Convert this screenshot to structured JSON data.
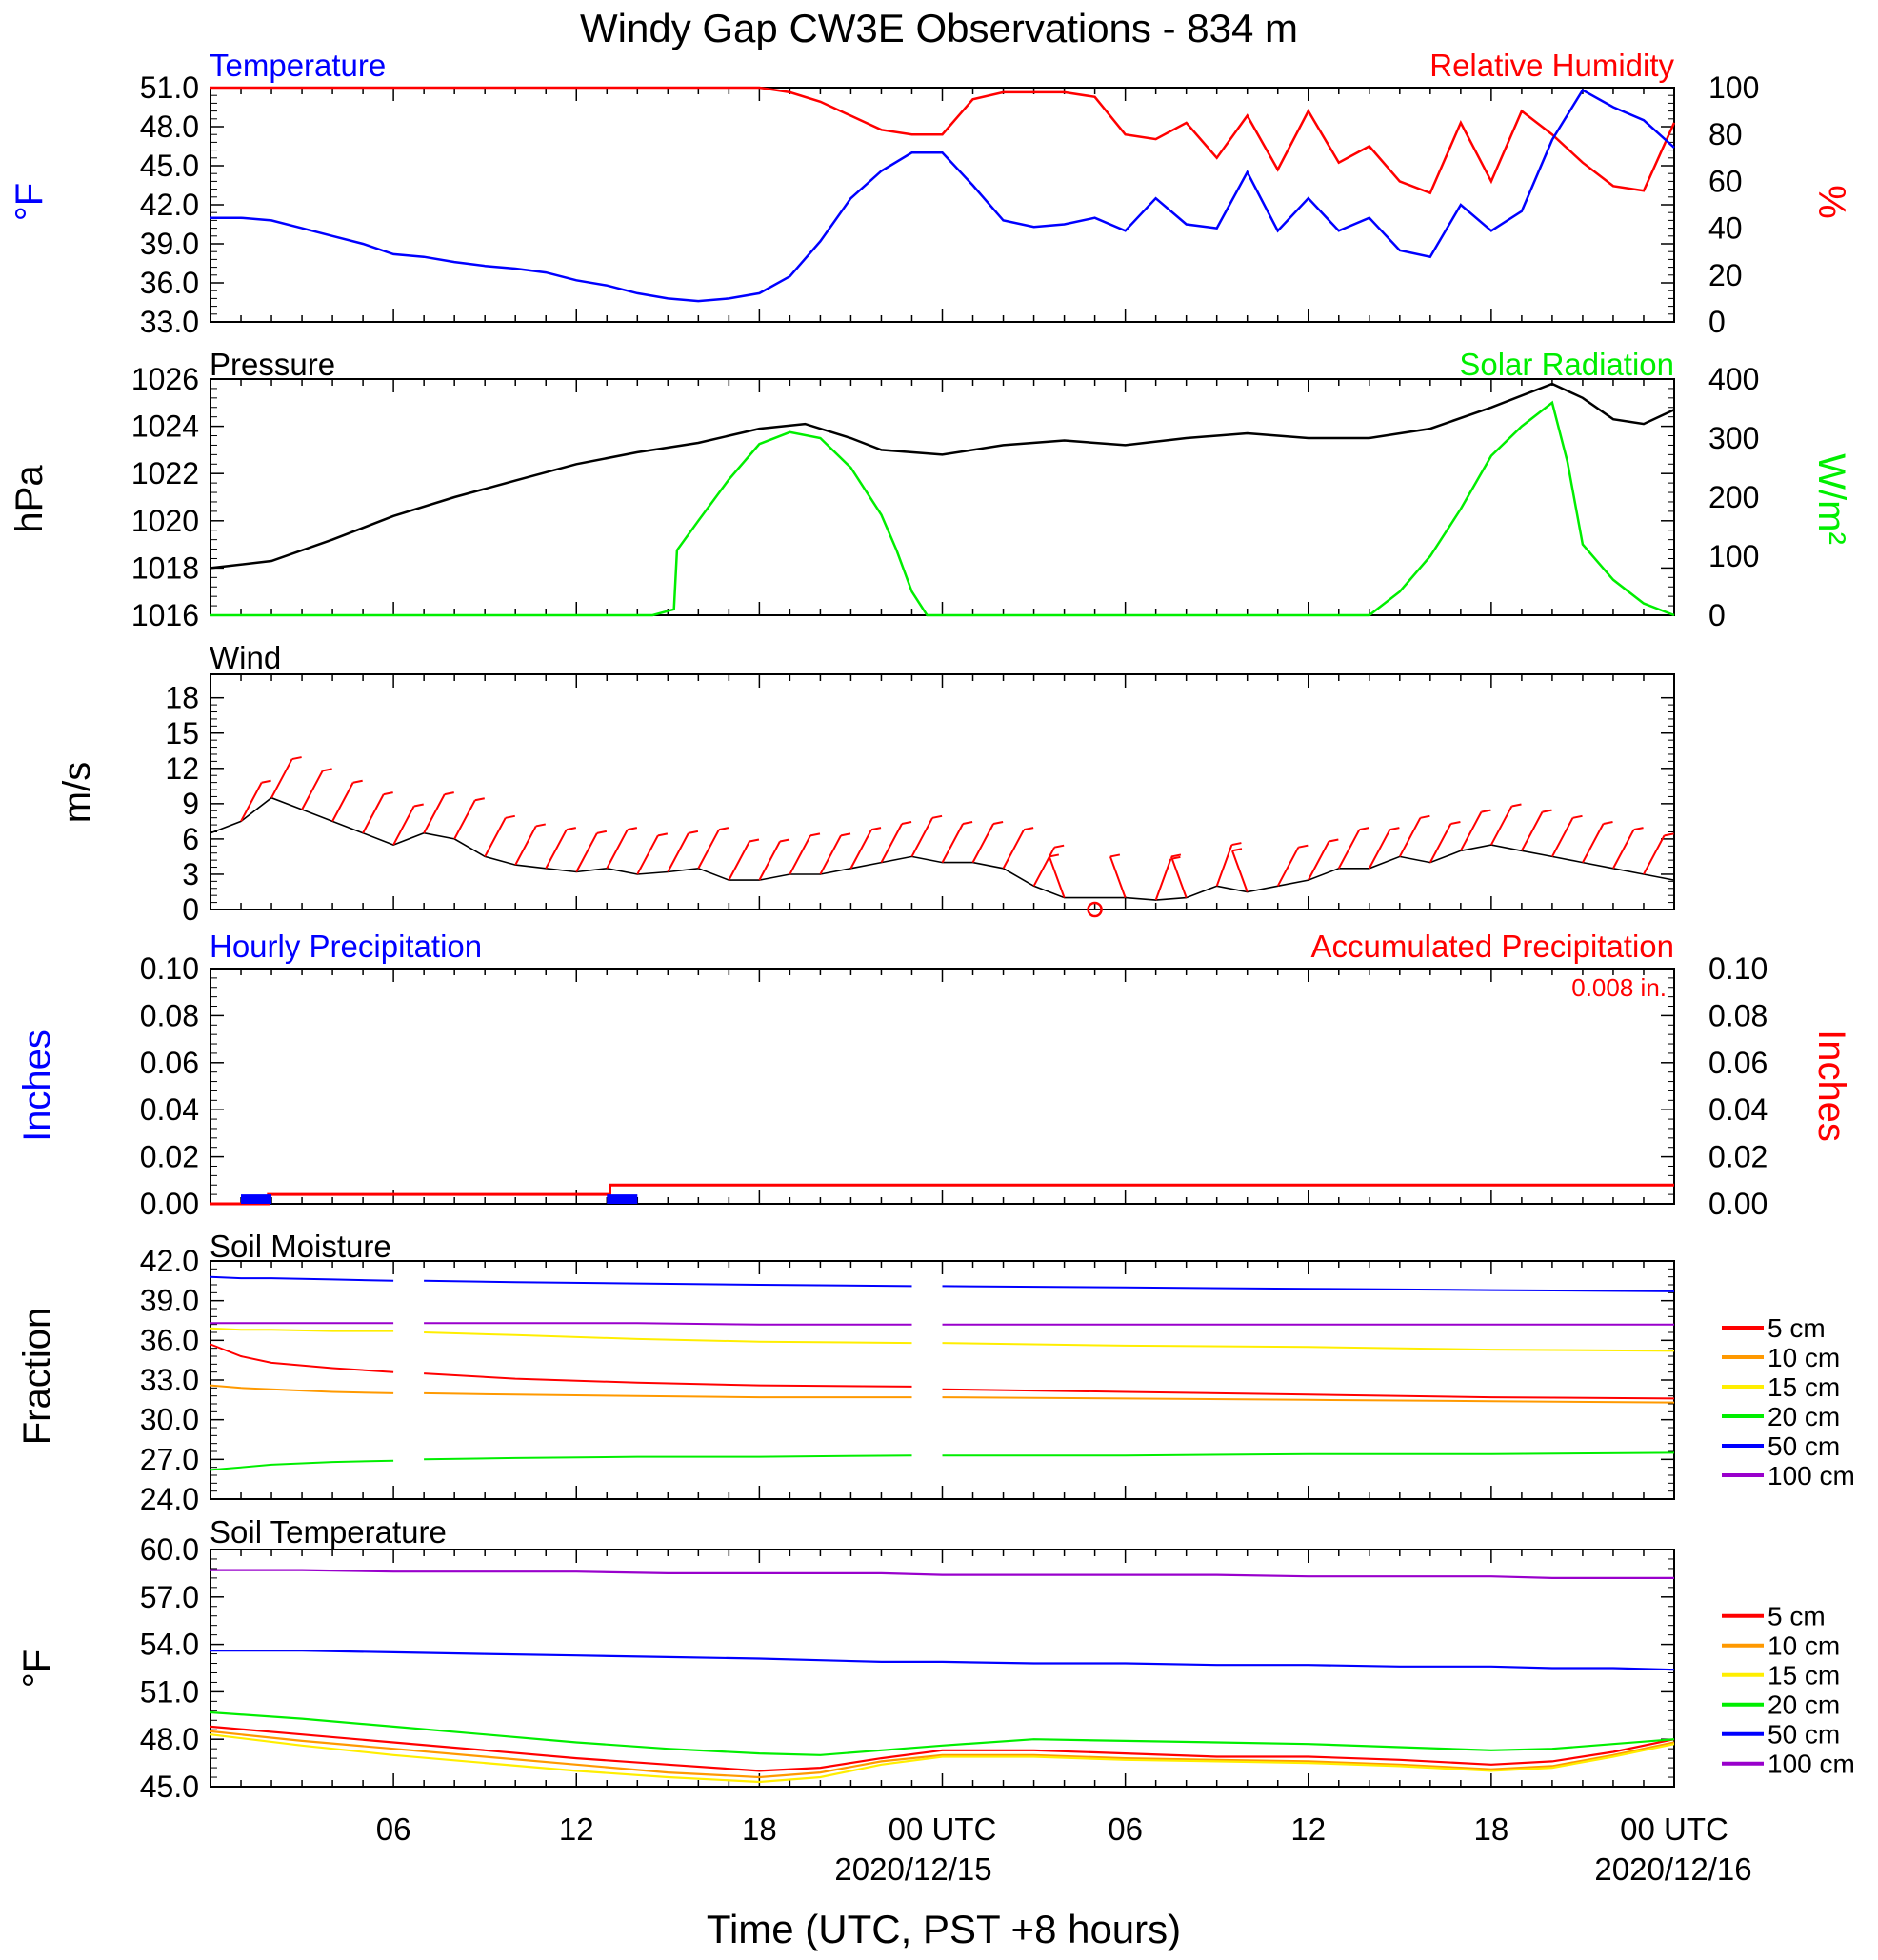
{
  "title": "Windy Gap CW3E Observations - 834 m",
  "time_axis": {
    "xlabel": "Time (UTC, PST +8 hours)",
    "ticks": [
      "06",
      "12",
      "18",
      "00 UTC",
      "06",
      "12",
      "18",
      "00 UTC"
    ],
    "dates": [
      "2020/12/15",
      "2020/12/16"
    ]
  },
  "colors": {
    "temperature": "#0000ff",
    "humidity": "#ff0000",
    "pressure": "#000000",
    "solar": "#00ee00",
    "wind_speed": "#000000",
    "wind_barb": "#ff0000",
    "hourly_precip": "#0000ff",
    "accum_precip": "#ff0000",
    "depth_colors": [
      "#ff0000",
      "#ff9900",
      "#ffee00",
      "#00ee00",
      "#0000ff",
      "#9900cc"
    ]
  },
  "legend_depths": [
    "5 cm",
    "10 cm",
    "15 cm",
    "20 cm",
    "50 cm",
    "100 cm"
  ],
  "chart_data": [
    {
      "type": "line",
      "name": "temp-rh",
      "left_title": "Temperature",
      "right_title": "Relative Humidity",
      "ylabel_left": "°F",
      "ylabel_right": "%",
      "ylim_left": [
        33,
        51
      ],
      "yticks_left": [
        "33.0",
        "36.0",
        "39.0",
        "42.0",
        "45.0",
        "48.0",
        "51.0"
      ],
      "ylim_right": [
        0,
        100
      ],
      "yticks_right": [
        "0",
        "20",
        "40",
        "60",
        "80",
        "100"
      ],
      "x_hours": [
        0,
        1,
        2,
        3,
        4,
        5,
        6,
        7,
        8,
        9,
        10,
        11,
        12,
        13,
        14,
        15,
        16,
        17,
        18,
        19,
        20,
        21,
        22,
        23,
        24,
        25,
        26,
        27,
        28,
        29,
        30,
        31,
        32,
        33,
        34,
        35,
        36,
        37,
        38,
        39,
        40,
        41,
        42,
        43,
        44,
        45,
        46,
        47,
        48
      ],
      "series": [
        {
          "name": "Temperature",
          "axis": "left",
          "values": [
            41.0,
            41.0,
            40.8,
            40.2,
            39.6,
            39.0,
            38.2,
            38.0,
            37.6,
            37.3,
            37.1,
            36.8,
            36.2,
            35.8,
            35.2,
            34.8,
            34.6,
            34.8,
            35.2,
            36.5,
            39.2,
            42.5,
            44.6,
            46.0,
            46.0,
            43.5,
            40.8,
            40.3,
            40.5,
            41.0,
            40.0,
            42.5,
            40.5,
            40.2,
            44.5,
            40.0,
            42.5,
            40.0,
            41.0,
            38.5,
            38.0,
            42.0,
            40.0,
            41.5,
            47.0,
            50.8,
            49.5,
            48.5,
            46.4
          ]
        },
        {
          "name": "Relative Humidity",
          "axis": "right",
          "values": [
            100,
            100,
            100,
            100,
            100,
            100,
            100,
            100,
            100,
            100,
            100,
            100,
            100,
            100,
            100,
            100,
            100,
            100,
            100,
            98,
            94,
            88,
            82,
            80,
            80,
            95,
            98,
            98,
            98,
            96,
            80,
            78,
            85,
            70,
            88,
            65,
            90,
            68,
            75,
            60,
            55,
            85,
            60,
            90,
            80,
            68,
            58,
            56,
            85
          ]
        }
      ]
    },
    {
      "type": "line",
      "name": "pressure-solar",
      "left_title": "Pressure",
      "right_title": "Solar Radiation",
      "ylabel_left": "hPa",
      "ylabel_right": "W/m²",
      "ylim_left": [
        1016,
        1026
      ],
      "yticks_left": [
        "1016",
        "1018",
        "1020",
        "1022",
        "1024",
        "1026"
      ],
      "ylim_right": [
        0,
        400
      ],
      "yticks_right": [
        "0",
        "100",
        "200",
        "300",
        "400"
      ],
      "x_hours": [
        0,
        2,
        4,
        6,
        8,
        10,
        12,
        14,
        16,
        18,
        19.5,
        21,
        22,
        24,
        26,
        28,
        30,
        32,
        34,
        36,
        38,
        40,
        42,
        44,
        45,
        46,
        47,
        48
      ],
      "series": [
        {
          "name": "Pressure",
          "axis": "left",
          "values": [
            1018.0,
            1018.3,
            1019.2,
            1020.2,
            1021.0,
            1021.7,
            1022.4,
            1022.9,
            1023.3,
            1023.9,
            1024.1,
            1023.5,
            1023.0,
            1022.8,
            1023.2,
            1023.4,
            1023.2,
            1023.5,
            1023.7,
            1023.5,
            1023.5,
            1023.9,
            1024.8,
            1025.8,
            1025.2,
            1024.3,
            1024.1,
            1024.7
          ]
        },
        {
          "name": "Solar Radiation",
          "axis": "right",
          "values": [
            0,
            0,
            0,
            0,
            0,
            0,
            0,
            0,
            0,
            0,
            0,
            0,
            0,
            0,
            0,
            0,
            0,
            0,
            0,
            0,
            0,
            0,
            0,
            0,
            0,
            0,
            0,
            0
          ]
        }
      ],
      "solar_curve": {
        "x_hours": [
          0,
          14.5,
          15.2,
          15.3,
          16,
          17,
          18,
          19,
          20,
          21,
          22,
          22.5,
          23,
          23.5,
          24,
          24.5,
          36,
          38,
          39,
          40,
          41,
          42,
          43,
          44,
          44.5,
          45,
          45.5,
          46,
          47,
          48
        ],
        "values": [
          0,
          0,
          10,
          110,
          160,
          230,
          290,
          310,
          300,
          250,
          170,
          110,
          40,
          0,
          0,
          0,
          0,
          0,
          40,
          100,
          180,
          270,
          320,
          360,
          260,
          120,
          90,
          60,
          20,
          0
        ]
      }
    },
    {
      "type": "line",
      "name": "wind",
      "left_title": "Wind",
      "ylabel_left": "m/s",
      "ylim_left": [
        0,
        20
      ],
      "yticks_left": [
        "0",
        "3",
        "6",
        "9",
        "12",
        "15",
        "18"
      ],
      "x_hours": [
        0,
        1,
        2,
        3,
        4,
        5,
        6,
        7,
        8,
        9,
        10,
        11,
        12,
        13,
        14,
        15,
        16,
        17,
        18,
        19,
        20,
        21,
        22,
        23,
        24,
        25,
        26,
        27,
        28,
        29,
        30,
        31,
        32,
        33,
        34,
        35,
        36,
        37,
        38,
        39,
        40,
        41,
        42,
        43,
        44,
        45,
        46,
        47,
        48
      ],
      "series": [
        {
          "name": "Speed",
          "values": [
            6.5,
            7.5,
            9.5,
            8.5,
            7.5,
            6.5,
            5.5,
            6.5,
            6.0,
            4.5,
            3.8,
            3.5,
            3.2,
            3.5,
            3.0,
            3.2,
            3.5,
            2.5,
            2.5,
            3.0,
            3.0,
            3.5,
            4.0,
            4.5,
            4.0,
            4.0,
            3.5,
            2.0,
            1.0,
            1.0,
            1.0,
            0.8,
            1.0,
            2.0,
            1.5,
            2.0,
            2.5,
            3.5,
            3.5,
            4.5,
            4.0,
            5.0,
            5.5,
            5.0,
            4.5,
            4.0,
            3.5,
            3.0,
            2.5
          ]
        }
      ]
    },
    {
      "type": "bar",
      "name": "precipitation",
      "left_title": "Hourly Precipitation",
      "right_title": "Accumulated Precipitation",
      "annotation": "0.008 in.",
      "ylabel_left": "Inches",
      "ylabel_right": "Inches",
      "ylim_left": [
        0,
        0.1
      ],
      "yticks_left": [
        "0.00",
        "0.02",
        "0.04",
        "0.06",
        "0.08",
        "0.10"
      ],
      "ylim_right": [
        0,
        0.1
      ],
      "yticks_right": [
        "0.00",
        "0.02",
        "0.04",
        "0.06",
        "0.08",
        "0.10"
      ],
      "hourly_bars": [
        {
          "x_start": 1,
          "x_end": 2,
          "value": 0.004
        },
        {
          "x_start": 13,
          "x_end": 14,
          "value": 0.004
        }
      ],
      "accumulated": {
        "x_hours": [
          0,
          1.9,
          1.9,
          13.1,
          13.1,
          48
        ],
        "values": [
          0.0,
          0.0,
          0.004,
          0.004,
          0.008,
          0.008
        ]
      }
    },
    {
      "type": "line",
      "name": "soil-moisture",
      "left_title": "Soil Moisture",
      "ylabel_left": "Fraction",
      "ylim_left": [
        24,
        42
      ],
      "yticks_left": [
        "24.0",
        "27.0",
        "30.0",
        "33.0",
        "36.0",
        "39.0",
        "42.0"
      ],
      "gaps_hours": [
        [
          6,
          7
        ],
        [
          23,
          24
        ]
      ],
      "x_hours": [
        0,
        1,
        2,
        4,
        6,
        7,
        10,
        14,
        18,
        23,
        24,
        30,
        36,
        42,
        48
      ],
      "series": [
        {
          "name": "5 cm",
          "values": [
            35.7,
            34.8,
            34.3,
            33.9,
            33.6,
            33.5,
            33.1,
            32.8,
            32.6,
            32.5,
            32.3,
            32.1,
            31.9,
            31.7,
            31.6
          ]
        },
        {
          "name": "10 cm",
          "values": [
            32.6,
            32.4,
            32.3,
            32.1,
            32.0,
            32.0,
            31.9,
            31.8,
            31.7,
            31.7,
            31.7,
            31.6,
            31.5,
            31.4,
            31.3
          ]
        },
        {
          "name": "15 cm",
          "values": [
            36.9,
            36.8,
            36.8,
            36.7,
            36.7,
            36.6,
            36.4,
            36.1,
            35.9,
            35.8,
            35.8,
            35.6,
            35.5,
            35.3,
            35.2
          ]
        },
        {
          "name": "20 cm",
          "values": [
            26.2,
            26.4,
            26.6,
            26.8,
            26.9,
            27.0,
            27.1,
            27.2,
            27.2,
            27.3,
            27.3,
            27.3,
            27.4,
            27.4,
            27.5
          ]
        },
        {
          "name": "50 cm",
          "values": [
            40.8,
            40.7,
            40.7,
            40.6,
            40.5,
            40.5,
            40.4,
            40.3,
            40.2,
            40.1,
            40.1,
            40.0,
            39.9,
            39.8,
            39.7
          ]
        },
        {
          "name": "100 cm",
          "values": [
            37.3,
            37.3,
            37.3,
            37.3,
            37.3,
            37.3,
            37.3,
            37.3,
            37.2,
            37.2,
            37.2,
            37.2,
            37.2,
            37.2,
            37.2
          ]
        }
      ]
    },
    {
      "type": "line",
      "name": "soil-temperature",
      "left_title": "Soil Temperature",
      "ylabel_left": "°F",
      "ylim_left": [
        45,
        60
      ],
      "yticks_left": [
        "45.0",
        "48.0",
        "51.0",
        "54.0",
        "57.0",
        "60.0"
      ],
      "x_hours": [
        0,
        3,
        6,
        9,
        12,
        15,
        18,
        20,
        22,
        24,
        27,
        30,
        33,
        36,
        39,
        42,
        44,
        46,
        48
      ],
      "series": [
        {
          "name": "5 cm",
          "values": [
            48.8,
            48.3,
            47.8,
            47.3,
            46.8,
            46.4,
            46.0,
            46.2,
            46.8,
            47.3,
            47.3,
            47.1,
            46.9,
            46.9,
            46.7,
            46.4,
            46.6,
            47.2,
            48.0
          ]
        },
        {
          "name": "10 cm",
          "values": [
            48.5,
            47.9,
            47.4,
            46.9,
            46.4,
            45.9,
            45.6,
            45.9,
            46.6,
            47.0,
            47.0,
            46.8,
            46.7,
            46.6,
            46.4,
            46.1,
            46.3,
            47.0,
            47.8
          ]
        },
        {
          "name": "15 cm",
          "values": [
            48.3,
            47.6,
            47.0,
            46.5,
            46.0,
            45.6,
            45.3,
            45.6,
            46.4,
            46.9,
            46.9,
            46.7,
            46.6,
            46.5,
            46.3,
            46.0,
            46.2,
            46.9,
            47.7
          ]
        },
        {
          "name": "20 cm",
          "values": [
            49.7,
            49.3,
            48.8,
            48.3,
            47.8,
            47.4,
            47.1,
            47.0,
            47.3,
            47.6,
            48.0,
            47.9,
            47.8,
            47.7,
            47.5,
            47.3,
            47.4,
            47.7,
            48.0
          ]
        },
        {
          "name": "50 cm",
          "values": [
            53.6,
            53.6,
            53.5,
            53.4,
            53.3,
            53.2,
            53.1,
            53.0,
            52.9,
            52.9,
            52.8,
            52.8,
            52.7,
            52.7,
            52.6,
            52.6,
            52.5,
            52.5,
            52.4
          ]
        },
        {
          "name": "100 cm",
          "values": [
            58.7,
            58.7,
            58.6,
            58.6,
            58.6,
            58.5,
            58.5,
            58.5,
            58.5,
            58.4,
            58.4,
            58.4,
            58.4,
            58.3,
            58.3,
            58.3,
            58.2,
            58.2,
            58.2
          ]
        }
      ]
    }
  ]
}
